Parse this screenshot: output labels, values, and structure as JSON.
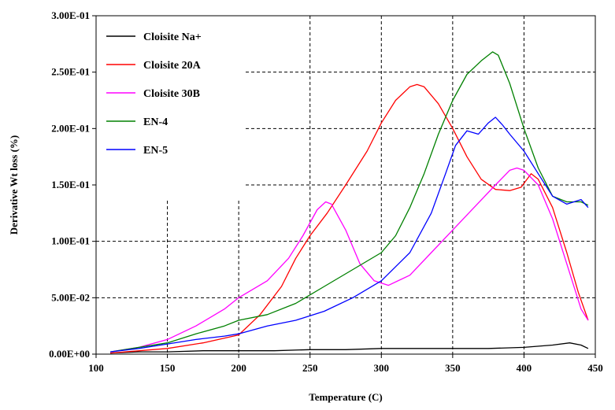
{
  "chart_data": {
    "type": "line",
    "title": "",
    "xlabel": "Temperature (C)",
    "ylabel": "Derivative Wt loss (%)",
    "xlim": [
      100,
      450
    ],
    "ylim": [
      0,
      0.3
    ],
    "grid": "dashed",
    "legend": "top-left",
    "x_ticks": [
      100,
      150,
      200,
      250,
      300,
      350,
      400,
      450
    ],
    "x_tick_labels": [
      "100",
      "150",
      "200",
      "250",
      "300",
      "350",
      "400",
      "450"
    ],
    "y_ticks": [
      0,
      0.05,
      0.1,
      0.15,
      0.2,
      0.25,
      0.3
    ],
    "y_tick_labels": [
      "0.00E+00",
      "5.00E-02",
      "1.00E-01",
      "1.50E-01",
      "2.00E-01",
      "2.50E-01",
      "3.00E-01"
    ],
    "series": [
      {
        "name": "Cloisite Na+",
        "color": "#000000",
        "points": [
          [
            110,
            0.001
          ],
          [
            130,
            0.002
          ],
          [
            150,
            0.002
          ],
          [
            175,
            0.003
          ],
          [
            200,
            0.003
          ],
          [
            225,
            0.003
          ],
          [
            250,
            0.004
          ],
          [
            275,
            0.004
          ],
          [
            300,
            0.005
          ],
          [
            325,
            0.005
          ],
          [
            350,
            0.005
          ],
          [
            375,
            0.005
          ],
          [
            400,
            0.006
          ],
          [
            420,
            0.008
          ],
          [
            432,
            0.01
          ],
          [
            440,
            0.008
          ],
          [
            445,
            0.005
          ]
        ]
      },
      {
        "name": "Cloisite 20A",
        "color": "#ff0000",
        "points": [
          [
            110,
            0.001
          ],
          [
            150,
            0.005
          ],
          [
            175,
            0.01
          ],
          [
            200,
            0.017
          ],
          [
            215,
            0.035
          ],
          [
            230,
            0.06
          ],
          [
            240,
            0.085
          ],
          [
            250,
            0.105
          ],
          [
            262,
            0.125
          ],
          [
            275,
            0.15
          ],
          [
            290,
            0.18
          ],
          [
            300,
            0.205
          ],
          [
            310,
            0.225
          ],
          [
            320,
            0.237
          ],
          [
            325,
            0.239
          ],
          [
            330,
            0.237
          ],
          [
            340,
            0.222
          ],
          [
            350,
            0.2
          ],
          [
            360,
            0.175
          ],
          [
            370,
            0.155
          ],
          [
            380,
            0.146
          ],
          [
            390,
            0.145
          ],
          [
            398,
            0.148
          ],
          [
            405,
            0.16
          ],
          [
            410,
            0.155
          ],
          [
            420,
            0.13
          ],
          [
            430,
            0.09
          ],
          [
            438,
            0.055
          ],
          [
            445,
            0.03
          ]
        ]
      },
      {
        "name": "Cloisite 30B",
        "color": "#ff00ff",
        "points": [
          [
            110,
            0.002
          ],
          [
            130,
            0.006
          ],
          [
            150,
            0.013
          ],
          [
            170,
            0.025
          ],
          [
            190,
            0.04
          ],
          [
            200,
            0.05
          ],
          [
            220,
            0.065
          ],
          [
            235,
            0.085
          ],
          [
            245,
            0.105
          ],
          [
            255,
            0.128
          ],
          [
            261,
            0.135
          ],
          [
            265,
            0.133
          ],
          [
            275,
            0.11
          ],
          [
            285,
            0.08
          ],
          [
            295,
            0.065
          ],
          [
            305,
            0.061
          ],
          [
            320,
            0.07
          ],
          [
            335,
            0.09
          ],
          [
            350,
            0.11
          ],
          [
            365,
            0.13
          ],
          [
            380,
            0.15
          ],
          [
            390,
            0.163
          ],
          [
            395,
            0.165
          ],
          [
            400,
            0.163
          ],
          [
            410,
            0.15
          ],
          [
            420,
            0.12
          ],
          [
            430,
            0.08
          ],
          [
            440,
            0.04
          ],
          [
            445,
            0.03
          ]
        ]
      },
      {
        "name": "EN-4",
        "color": "#008000",
        "points": [
          [
            110,
            0.002
          ],
          [
            130,
            0.006
          ],
          [
            150,
            0.01
          ],
          [
            170,
            0.018
          ],
          [
            190,
            0.025
          ],
          [
            200,
            0.03
          ],
          [
            220,
            0.035
          ],
          [
            240,
            0.045
          ],
          [
            260,
            0.06
          ],
          [
            280,
            0.075
          ],
          [
            300,
            0.09
          ],
          [
            310,
            0.105
          ],
          [
            320,
            0.13
          ],
          [
            330,
            0.16
          ],
          [
            340,
            0.195
          ],
          [
            350,
            0.225
          ],
          [
            360,
            0.248
          ],
          [
            370,
            0.26
          ],
          [
            378,
            0.268
          ],
          [
            382,
            0.265
          ],
          [
            390,
            0.24
          ],
          [
            400,
            0.2
          ],
          [
            410,
            0.165
          ],
          [
            420,
            0.14
          ],
          [
            430,
            0.135
          ],
          [
            440,
            0.135
          ],
          [
            445,
            0.132
          ]
        ]
      },
      {
        "name": "EN-5",
        "color": "#0000ff",
        "points": [
          [
            110,
            0.002
          ],
          [
            130,
            0.005
          ],
          [
            150,
            0.009
          ],
          [
            170,
            0.013
          ],
          [
            190,
            0.016
          ],
          [
            200,
            0.018
          ],
          [
            220,
            0.025
          ],
          [
            240,
            0.03
          ],
          [
            260,
            0.038
          ],
          [
            280,
            0.05
          ],
          [
            300,
            0.065
          ],
          [
            320,
            0.09
          ],
          [
            335,
            0.125
          ],
          [
            345,
            0.16
          ],
          [
            352,
            0.185
          ],
          [
            360,
            0.198
          ],
          [
            368,
            0.195
          ],
          [
            375,
            0.205
          ],
          [
            380,
            0.21
          ],
          [
            385,
            0.203
          ],
          [
            390,
            0.195
          ],
          [
            400,
            0.18
          ],
          [
            410,
            0.16
          ],
          [
            420,
            0.14
          ],
          [
            430,
            0.133
          ],
          [
            440,
            0.137
          ],
          [
            445,
            0.13
          ]
        ]
      }
    ]
  }
}
